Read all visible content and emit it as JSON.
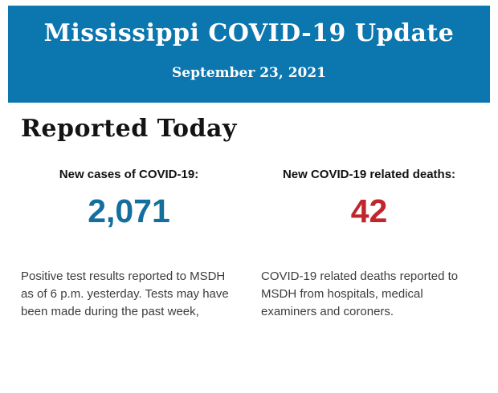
{
  "header": {
    "title": "Mississippi COVID-19 Update",
    "date": "September 23, 2021",
    "bg_color": "#0c76af",
    "text_color": "#ffffff"
  },
  "section": {
    "heading": "Reported Today"
  },
  "stats": [
    {
      "label": "New cases of COVID-19:",
      "value": "2,071",
      "value_color": "#146e9e",
      "description": "Positive test results reported to MSDH as of 6 p.m. yesterday. Tests may have been made during the past week,"
    },
    {
      "label": "New COVID-19 related deaths:",
      "value": "42",
      "value_color": "#c1262d",
      "description": "COVID-19 related deaths reported to MSDH from hospitals, medical examiners and coroners."
    }
  ]
}
